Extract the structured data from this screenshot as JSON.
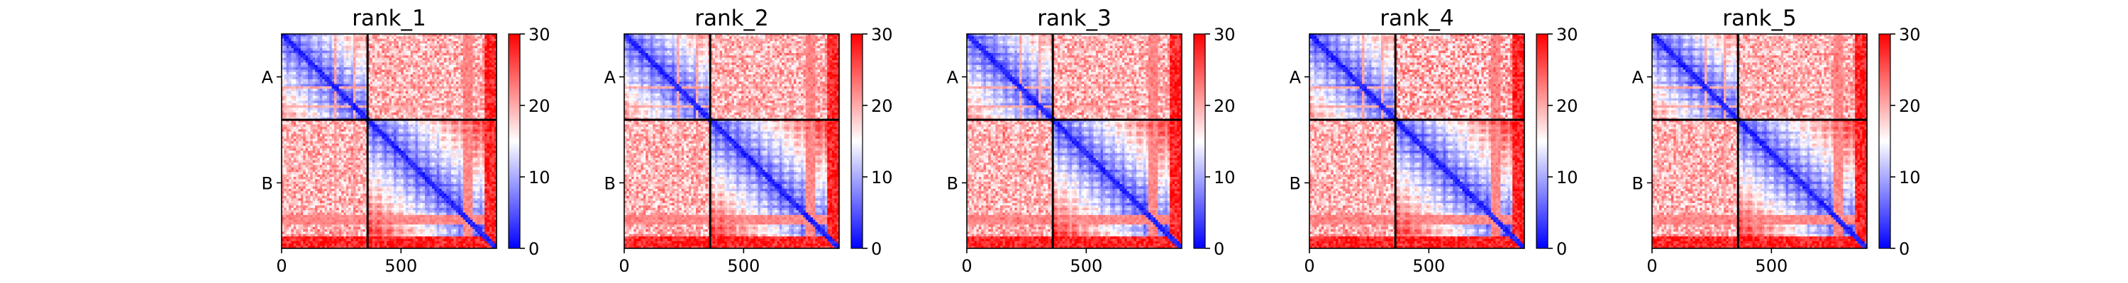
{
  "chart_data": {
    "type": "heatmap",
    "panels": [
      {
        "title": "rank_1"
      },
      {
        "title": "rank_2"
      },
      {
        "title": "rank_3"
      },
      {
        "title": "rank_4"
      },
      {
        "title": "rank_5"
      }
    ],
    "xlim": [
      0,
      900
    ],
    "x_ticks": [
      {
        "value": 0,
        "label": "0"
      },
      {
        "value": 500,
        "label": "500"
      }
    ],
    "y_ticks": [
      {
        "value": 180,
        "label": "A"
      },
      {
        "value": 625,
        "label": "B"
      }
    ],
    "chain_boundary": 360,
    "colorbar": {
      "range": [
        0,
        30
      ],
      "ticks": [
        0,
        10,
        20,
        30
      ],
      "tick_labels": [
        "0",
        "10",
        "20",
        "30"
      ],
      "colors": [
        "#0000ff",
        "#ffffff",
        "#ff0000"
      ]
    },
    "grid": false
  }
}
